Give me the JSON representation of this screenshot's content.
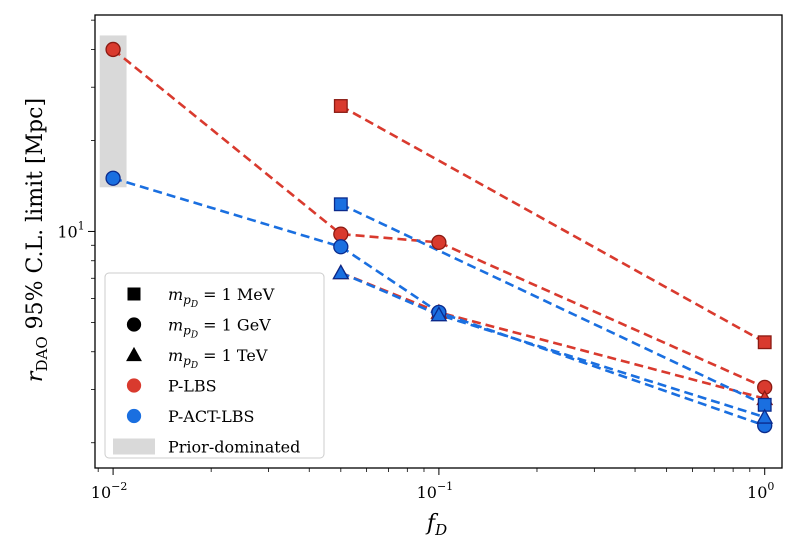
{
  "chart_data": {
    "type": "line",
    "title": "",
    "xlabel": "f_D",
    "ylabel": "r_DAO 95% C.L. limit [Mpc]",
    "xscale": "log",
    "yscale": "log",
    "xlim": [
      0.0088,
      1.13
    ],
    "ylim": [
      1.65,
      52
    ],
    "x_ticks": [
      {
        "value": 0.01,
        "base": "10",
        "exp": "−2"
      },
      {
        "value": 0.1,
        "base": "10",
        "exp": "−1"
      },
      {
        "value": 1,
        "base": "10",
        "exp": "0"
      }
    ],
    "y_ticks": [
      {
        "value": 10,
        "base": "10",
        "exp": "1"
      }
    ],
    "colors": {
      "P-LBS": "#d93a2e",
      "P-ACT-LBS": "#1a6fe0",
      "prior": "#d9d9d9"
    },
    "series": [
      {
        "name": "P-LBS, m = 1 MeV",
        "dataset": "P-LBS",
        "mass": "1 MeV",
        "marker": "square",
        "x": [
          0.05,
          1
        ],
        "y": [
          26.0,
          4.3
        ]
      },
      {
        "name": "P-LBS, m = 1 GeV",
        "dataset": "P-LBS",
        "mass": "1 GeV",
        "marker": "circle",
        "x": [
          0.01,
          0.05,
          0.1,
          1
        ],
        "y": [
          40.0,
          9.8,
          9.2,
          3.05
        ]
      },
      {
        "name": "P-LBS, m = 1 TeV",
        "dataset": "P-LBS",
        "mass": "1 TeV",
        "marker": "triangle",
        "x": [
          0.05,
          0.1,
          1
        ],
        "y": [
          7.3,
          5.4,
          2.8
        ]
      },
      {
        "name": "P-ACT-LBS, m = 1 MeV",
        "dataset": "P-ACT-LBS",
        "mass": "1 MeV",
        "marker": "square",
        "x": [
          0.05,
          1
        ],
        "y": [
          12.3,
          2.67
        ]
      },
      {
        "name": "P-ACT-LBS, m = 1 GeV",
        "dataset": "P-ACT-LBS",
        "mass": "1 GeV",
        "marker": "circle",
        "x": [
          0.01,
          0.05,
          0.1,
          1
        ],
        "y": [
          15.0,
          8.9,
          5.4,
          2.28
        ]
      },
      {
        "name": "P-ACT-LBS, m = 1 TeV",
        "dataset": "P-ACT-LBS",
        "mass": "1 TeV",
        "marker": "triangle",
        "x": [
          0.05,
          0.1,
          1
        ],
        "y": [
          7.3,
          5.3,
          2.43
        ]
      }
    ],
    "prior_region": {
      "x": [
        0.0091,
        0.011
      ],
      "y": [
        14.0,
        44.5
      ]
    },
    "legend": {
      "position": "lower-left",
      "entries": [
        {
          "label_base": "m",
          "label_sub": "p",
          "label_subsub": "D",
          "label_rest": " = 1 MeV",
          "marker": "square",
          "color": "#000000"
        },
        {
          "label_base": "m",
          "label_sub": "p",
          "label_subsub": "D",
          "label_rest": " = 1 GeV",
          "marker": "circle",
          "color": "#000000"
        },
        {
          "label_base": "m",
          "label_sub": "p",
          "label_subsub": "D",
          "label_rest": " = 1 TeV",
          "marker": "triangle",
          "color": "#000000"
        },
        {
          "label": "P-LBS",
          "marker": "circle",
          "color": "#d93a2e"
        },
        {
          "label": "P-ACT-LBS",
          "marker": "circle",
          "color": "#1a6fe0"
        },
        {
          "label": "Prior-dominated",
          "marker": "patch",
          "color": "#d9d9d9"
        }
      ]
    }
  },
  "axis_text": {
    "x_label_main": "f",
    "x_label_sub": "D",
    "y_label_main": "r",
    "y_label_sub": "DAO",
    "y_label_rest": " 95% C.L. limit [Mpc]"
  }
}
